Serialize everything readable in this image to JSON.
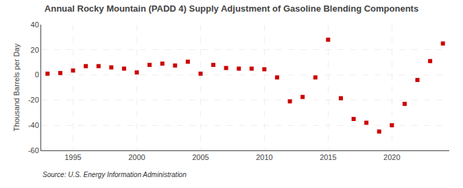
{
  "chart_data": {
    "type": "scatter",
    "title": "Annual Rocky Mountain (PADD 4) Supply Adjustment of Gasoline Blending Components",
    "ylabel": "Thousand Barrels per Day",
    "source": "Source: U.S. Energy Information Administration",
    "x": [
      1993,
      1994,
      1995,
      1996,
      1997,
      1998,
      1999,
      2000,
      2001,
      2002,
      2003,
      2004,
      2005,
      2006,
      2007,
      2008,
      2009,
      2010,
      2011,
      2012,
      2013,
      2014,
      2015,
      2016,
      2017,
      2018,
      2019,
      2020,
      2021,
      2022,
      2023,
      2024
    ],
    "values": [
      1.0,
      1.5,
      3.5,
      7.0,
      7.0,
      6.0,
      5.0,
      2.0,
      8.0,
      9.0,
      7.5,
      10.5,
      1.0,
      8.0,
      5.5,
      5.0,
      5.0,
      4.5,
      -2.0,
      -21.0,
      -17.5,
      -2.0,
      28.0,
      -18.5,
      -35.0,
      -38.0,
      -45.0,
      -40.0,
      -23.0,
      -4.0,
      11.0,
      25.0
    ],
    "color": "#cc0000",
    "marker": "square",
    "xlim": [
      1992.5,
      2024.5
    ],
    "xticks": [
      1995,
      2000,
      2005,
      2010,
      2015,
      2020
    ],
    "ylim": [
      -60,
      40
    ],
    "yticks": [
      -60,
      -40,
      -20,
      0,
      20,
      40
    ],
    "grid": true
  }
}
